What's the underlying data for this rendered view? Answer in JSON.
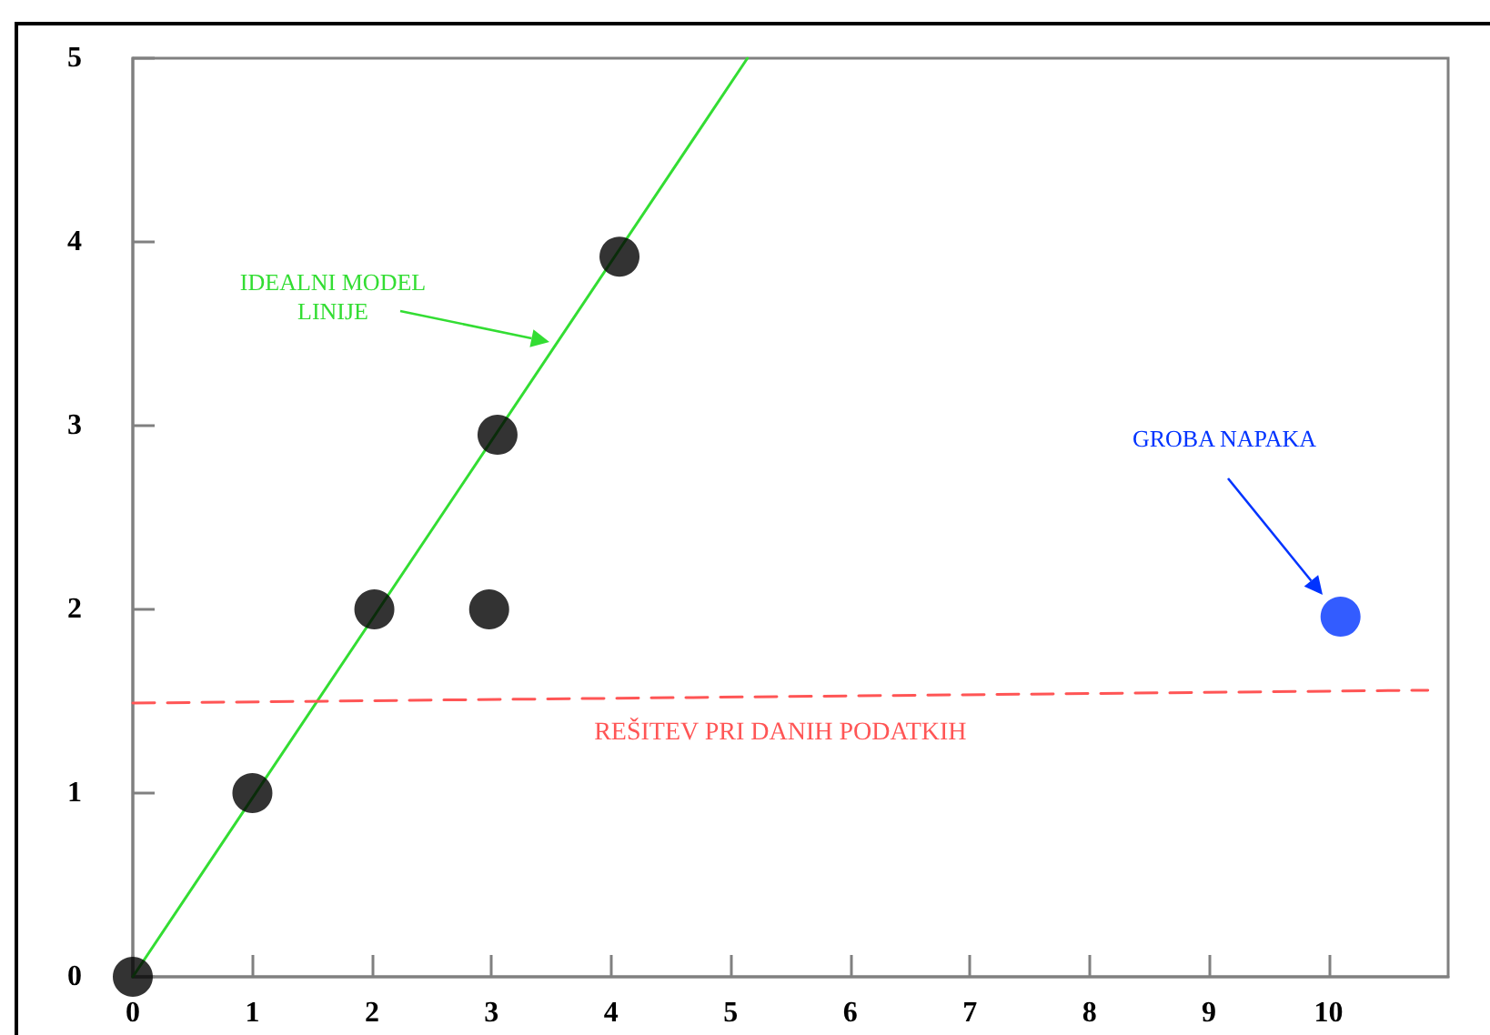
{
  "chart_data": {
    "type": "scatter",
    "xlim": [
      0,
      11
    ],
    "ylim": [
      0,
      5
    ],
    "xticks": [
      0,
      1,
      2,
      3,
      4,
      5,
      6,
      7,
      8,
      9,
      10
    ],
    "yticks": [
      0,
      1,
      2,
      3,
      4,
      5
    ],
    "marker": "circle",
    "series": [
      {
        "type": "line",
        "color": "#33dd33",
        "line_style": "solid",
        "marker": "none",
        "x": [
          0,
          5.14
        ],
        "values": [
          0,
          5
        ]
      },
      {
        "type": "line",
        "name": "REŠITEV PRI DANIH PODATKIH",
        "color": "#ff5555",
        "line_style": "dashed",
        "marker": "none",
        "x": [
          0,
          10.83
        ],
        "values": [
          1.49,
          1.56
        ]
      },
      {
        "color": "#000000",
        "x": [
          0,
          1,
          2.02,
          2.98,
          3.05,
          4.07
        ],
        "values": [
          0,
          1,
          2,
          2,
          2.95,
          3.92
        ]
      },
      {
        "color": "#0033ff",
        "x": [
          10.1
        ],
        "values": [
          1.96
        ]
      }
    ],
    "annotations": [
      "IDEALNI MODEL\nLINIJE",
      "GROBA NAPAKA"
    ]
  }
}
